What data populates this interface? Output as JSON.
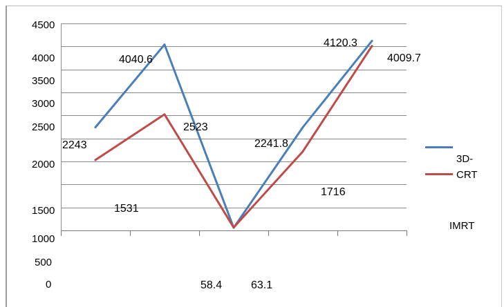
{
  "chart_data": {
    "type": "line",
    "series": [
      {
        "name": "3D-CRT",
        "color": "#4a7ebb",
        "values": [
          2243,
          4040.6,
          58.4,
          2241.8,
          4120.3
        ]
      },
      {
        "name": "IMRT",
        "color": "#be4b48",
        "values": [
          1531,
          2523,
          63.1,
          1716,
          4009.7
        ]
      }
    ],
    "y_ticks": [
      "4500",
      "4000",
      "3500",
      "3000",
      "2500",
      "2000",
      "1500",
      "1000",
      "500",
      "0"
    ],
    "ylim": [
      0,
      4500
    ],
    "grid": true,
    "data_labels": true,
    "legend": "right"
  }
}
